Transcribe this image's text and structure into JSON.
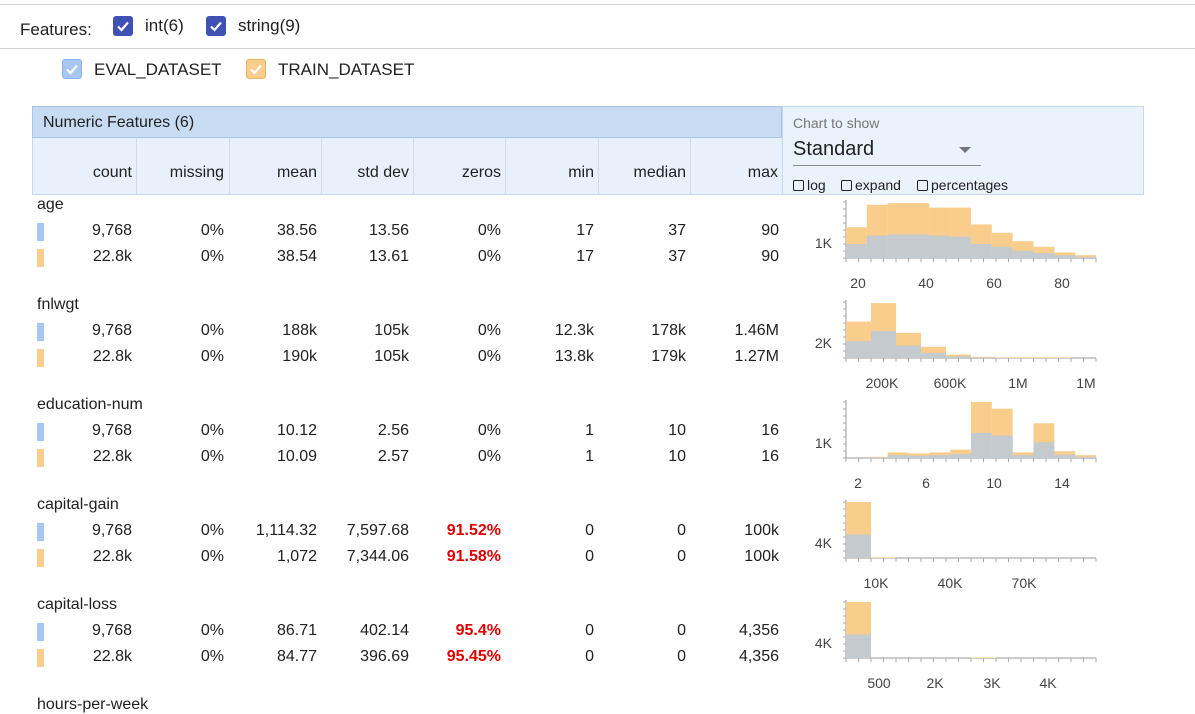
{
  "features_bar": {
    "label": "Features:",
    "filters": [
      {
        "label": "int(6)",
        "checked": true
      },
      {
        "label": "string(9)",
        "checked": true
      }
    ]
  },
  "datasets": [
    {
      "label": "EVAL_DATASET",
      "color": "#a7c7f2",
      "checked": true
    },
    {
      "label": "TRAIN_DATASET",
      "color": "#f9cd8b",
      "checked": true
    }
  ],
  "table": {
    "title": "Numeric Features (6)",
    "columns": [
      "count",
      "missing",
      "mean",
      "std dev",
      "zeros",
      "min",
      "median",
      "max"
    ]
  },
  "chart_controls": {
    "label": "Chart to show",
    "selected": "Standard",
    "options": [
      {
        "label": "log",
        "checked": false
      },
      {
        "label": "expand",
        "checked": false
      },
      {
        "label": "percentages",
        "checked": false
      }
    ]
  },
  "features": [
    {
      "name": "age",
      "rows": [
        {
          "count": "9,768",
          "missing": "0%",
          "mean": "38.56",
          "std_dev": "13.56",
          "zeros": "0%",
          "min": "17",
          "median": "37",
          "max": "90"
        },
        {
          "count": "22.8k",
          "missing": "0%",
          "mean": "38.54",
          "std_dev": "13.61",
          "zeros": "0%",
          "min": "17",
          "median": "37",
          "max": "90"
        }
      ],
      "chart": {
        "y_label": "1K",
        "x_ticks": [
          "20",
          "40",
          "60",
          "80"
        ],
        "train": [
          0.55,
          0.95,
          0.98,
          0.98,
          0.9,
          0.9,
          0.6,
          0.45,
          0.3,
          0.2,
          0.1,
          0.05
        ],
        "eval": [
          0.25,
          0.4,
          0.42,
          0.42,
          0.4,
          0.38,
          0.25,
          0.2,
          0.13,
          0.09,
          0.05,
          0.02
        ]
      }
    },
    {
      "name": "fnlwgt",
      "rows": [
        {
          "count": "9,768",
          "missing": "0%",
          "mean": "188k",
          "std_dev": "105k",
          "zeros": "0%",
          "min": "12.3k",
          "median": "178k",
          "max": "1.46M"
        },
        {
          "count": "22.8k",
          "missing": "0%",
          "mean": "190k",
          "std_dev": "105k",
          "zeros": "0%",
          "min": "13.8k",
          "median": "179k",
          "max": "1.27M"
        }
      ],
      "chart": {
        "y_label": "2K",
        "x_ticks": [
          "200K",
          "600K",
          "1M",
          "1M"
        ],
        "train": [
          0.65,
          0.98,
          0.45,
          0.2,
          0.06,
          0.02,
          0.01,
          0.01,
          0.01,
          0.0
        ],
        "eval": [
          0.3,
          0.48,
          0.22,
          0.09,
          0.03,
          0.01,
          0.0,
          0.0,
          0.0,
          0.0
        ]
      }
    },
    {
      "name": "education-num",
      "rows": [
        {
          "count": "9,768",
          "missing": "0%",
          "mean": "10.12",
          "std_dev": "2.56",
          "zeros": "0%",
          "min": "1",
          "median": "10",
          "max": "16"
        },
        {
          "count": "22.8k",
          "missing": "0%",
          "mean": "10.09",
          "std_dev": "2.57",
          "zeros": "0%",
          "min": "1",
          "median": "10",
          "max": "16"
        }
      ],
      "chart": {
        "y_label": "1K",
        "x_ticks": [
          "2",
          "6",
          "10",
          "14"
        ],
        "train": [
          0.0,
          0.02,
          0.1,
          0.08,
          0.1,
          0.15,
          1.0,
          0.88,
          0.1,
          0.62,
          0.12,
          0.05
        ],
        "eval": [
          0.0,
          0.01,
          0.05,
          0.04,
          0.05,
          0.07,
          0.45,
          0.4,
          0.05,
          0.28,
          0.06,
          0.02
        ]
      }
    },
    {
      "name": "capital-gain",
      "rows": [
        {
          "count": "9,768",
          "missing": "0%",
          "mean": "1,114.32",
          "std_dev": "7,597.68",
          "zeros": "91.52%",
          "min": "0",
          "median": "0",
          "max": "100k"
        },
        {
          "count": "22.8k",
          "missing": "0%",
          "mean": "1,072",
          "std_dev": "7,344.06",
          "zeros": "91.58%",
          "min": "0",
          "median": "0",
          "max": "100k"
        }
      ],
      "chart": {
        "y_label": "4K",
        "x_ticks": [
          "10K",
          "40K",
          "70K"
        ],
        "train": [
          1.0,
          0.01,
          0.0,
          0.0,
          0.0,
          0.0,
          0.0,
          0.0,
          0.0,
          0.0
        ],
        "eval": [
          0.42,
          0.0,
          0.0,
          0.0,
          0.0,
          0.0,
          0.0,
          0.0,
          0.0,
          0.0
        ]
      }
    },
    {
      "name": "capital-loss",
      "rows": [
        {
          "count": "9,768",
          "missing": "0%",
          "mean": "86.71",
          "std_dev": "402.14",
          "zeros": "95.4%",
          "min": "0",
          "median": "0",
          "max": "4,356"
        },
        {
          "count": "22.8k",
          "missing": "0%",
          "mean": "84.77",
          "std_dev": "396.69",
          "zeros": "95.45%",
          "min": "0",
          "median": "0",
          "max": "4,356"
        }
      ],
      "chart": {
        "y_label": "4K",
        "x_ticks": [
          "500",
          "2K",
          "3K",
          "4K"
        ],
        "train": [
          1.0,
          0.0,
          0.0,
          0.0,
          0.0,
          0.01,
          0.0,
          0.0,
          0.0,
          0.0
        ],
        "eval": [
          0.42,
          0.0,
          0.0,
          0.0,
          0.0,
          0.0,
          0.0,
          0.0,
          0.0,
          0.0
        ]
      }
    },
    {
      "name": "hours-per-week"
    }
  ]
}
